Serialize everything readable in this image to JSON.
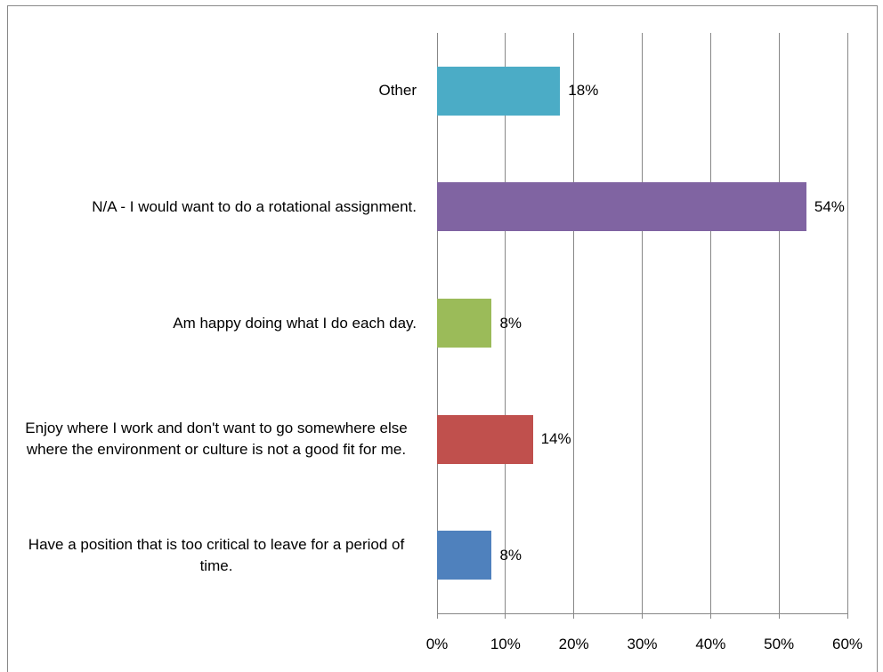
{
  "chart_data": {
    "type": "barh",
    "categories": [
      "Other",
      "N/A - I would want to do a rotational assignment.",
      "Am happy doing what I do each day.",
      "Enjoy where I work and don't want to go somewhere else where the environment or culture is not a good fit for me.",
      "Have a position that is too critical to leave for a period of time."
    ],
    "values": [
      18,
      54,
      8,
      14,
      8
    ],
    "value_labels": [
      "18%",
      "54%",
      "8%",
      "14%",
      "8%"
    ],
    "colors": [
      "#4bacc6",
      "#8064a2",
      "#9bbb59",
      "#c0504d",
      "#4f81bd"
    ],
    "xlim": [
      0,
      60
    ],
    "xticks": [
      {
        "value": 0,
        "label": "0%"
      },
      {
        "value": 10,
        "label": "10%"
      },
      {
        "value": 20,
        "label": "20%"
      },
      {
        "value": 30,
        "label": "30%"
      },
      {
        "value": 40,
        "label": "40%"
      },
      {
        "value": 50,
        "label": "50%"
      },
      {
        "value": 60,
        "label": "60%"
      }
    ],
    "grid": true
  }
}
